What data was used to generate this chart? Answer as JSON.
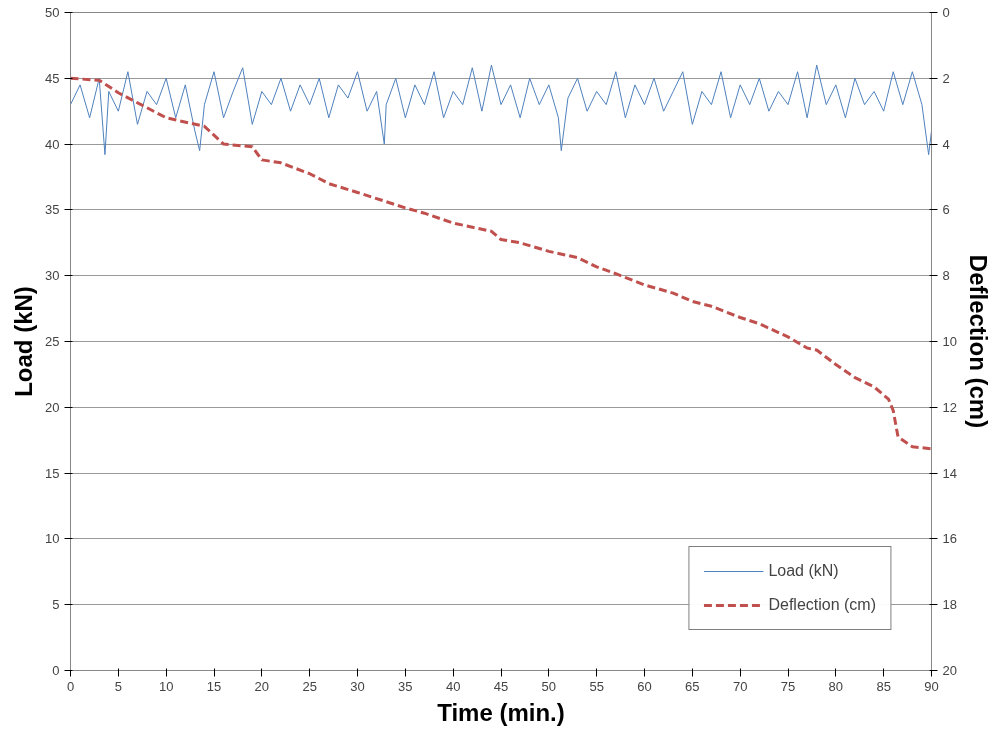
{
  "chart_data": {
    "type": "line",
    "xlabel": "Time (min.)",
    "ylabel": "Load (kN)",
    "y2label": "Deflection (cm)",
    "xlim": [
      0,
      90
    ],
    "xticks": [
      0,
      5,
      10,
      15,
      20,
      25,
      30,
      35,
      40,
      45,
      50,
      55,
      60,
      65,
      70,
      75,
      80,
      85,
      90
    ],
    "ylim": [
      0,
      50
    ],
    "yticks": [
      0,
      5,
      10,
      15,
      20,
      25,
      30,
      35,
      40,
      45,
      50
    ],
    "y2lim": [
      20,
      0
    ],
    "y2ticks": [
      0,
      2,
      4,
      6,
      8,
      10,
      12,
      14,
      16,
      18,
      20
    ],
    "grid": "y",
    "legend": "bottom right",
    "series": [
      {
        "name": "Load (kN)",
        "color": "#4f81bd",
        "line_style": "solid",
        "x": [
          0,
          1,
          2,
          3,
          3.6,
          4,
          5,
          6,
          7,
          8,
          9,
          10,
          11,
          12,
          13,
          13.5,
          14,
          15,
          16,
          17,
          18,
          19,
          20,
          21,
          22,
          23,
          24,
          25,
          26,
          27,
          28,
          29,
          30,
          31,
          32,
          32.8,
          33,
          34,
          35,
          36,
          37,
          38,
          39,
          40,
          41,
          42,
          43,
          44,
          45,
          46,
          47,
          48,
          49,
          50,
          51,
          51.3,
          52,
          53,
          54,
          55,
          56,
          57,
          58,
          59,
          60,
          61,
          62,
          63,
          64,
          65,
          66,
          67,
          68,
          69,
          70,
          71,
          72,
          73,
          74,
          75,
          76,
          77,
          78,
          79,
          80,
          81,
          82,
          83,
          84,
          85,
          86,
          87,
          88,
          89,
          89.7,
          90
        ],
        "values": [
          43,
          44.5,
          42,
          45,
          39.2,
          44,
          42.5,
          45.5,
          41.5,
          44,
          43,
          45,
          42,
          44.5,
          41,
          39.5,
          43,
          45.5,
          42,
          44,
          45.8,
          41.5,
          44,
          43,
          45,
          42.5,
          44.5,
          43,
          45,
          42,
          44.5,
          43.5,
          45.5,
          42.5,
          44,
          40,
          43,
          45,
          42,
          44.5,
          43,
          45.5,
          42,
          44,
          43,
          45.8,
          42.5,
          46,
          43,
          44.5,
          42,
          45,
          43,
          44.5,
          42,
          39.5,
          43.5,
          45,
          42.5,
          44,
          43,
          45.5,
          42,
          44.5,
          43,
          45,
          42.5,
          44,
          45.5,
          41.5,
          44,
          43,
          45.5,
          42,
          44.5,
          43,
          45,
          42.5,
          44,
          43,
          45.5,
          42,
          46,
          43,
          44.5,
          42,
          45,
          43,
          44,
          42.5,
          45.5,
          43,
          45.5,
          43,
          39.2,
          41
        ]
      },
      {
        "name": "Deflection (cm)",
        "color": "#c0504d",
        "line_style": "dashed",
        "axis": "y2",
        "x": [
          0,
          3,
          5,
          10,
          14,
          16,
          19,
          20,
          22,
          25,
          27,
          30,
          33,
          35,
          37,
          40,
          44,
          45,
          47,
          50,
          53,
          55,
          57,
          60,
          63,
          65,
          67,
          70,
          72,
          75,
          77,
          78,
          80,
          82,
          84,
          85.5,
          86,
          86.5,
          88,
          90
        ],
        "values": [
          2.0,
          2.06,
          2.44,
          3.2,
          3.46,
          4.0,
          4.08,
          4.48,
          4.57,
          4.9,
          5.2,
          5.47,
          5.75,
          5.94,
          6.1,
          6.4,
          6.65,
          6.9,
          7.0,
          7.26,
          7.45,
          7.73,
          7.94,
          8.28,
          8.53,
          8.78,
          8.93,
          9.27,
          9.46,
          9.86,
          10.2,
          10.26,
          10.7,
          11.1,
          11.38,
          11.75,
          12.1,
          12.9,
          13.2,
          13.26
        ]
      }
    ]
  }
}
